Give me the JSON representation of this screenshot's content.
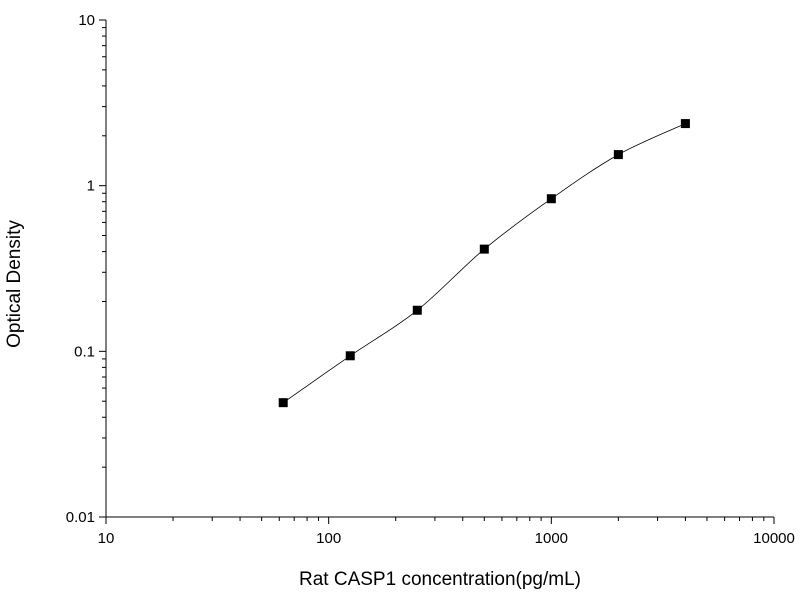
{
  "chart_data": {
    "type": "scatter",
    "title": "",
    "xlabel": "Rat CASP1 concentration(pg/mL)",
    "ylabel": "Optical Density",
    "xscale": "log",
    "yscale": "log",
    "xlim": [
      10,
      10000
    ],
    "ylim": [
      0.01,
      10
    ],
    "x_ticks": [
      10,
      100,
      1000,
      10000
    ],
    "x_tick_labels": [
      "10",
      "100",
      "1000",
      "10000"
    ],
    "y_ticks": [
      0.01,
      0.1,
      1,
      10
    ],
    "y_tick_labels": [
      "0.01",
      "0.1",
      "1",
      "10"
    ],
    "grid": false,
    "fit_curve": true,
    "marker": "square",
    "series": [
      {
        "x": [
          62.5,
          125,
          250,
          500,
          1000,
          2000,
          4000
        ],
        "y": [
          0.049,
          0.094,
          0.177,
          0.414,
          0.834,
          1.54,
          2.37
        ]
      }
    ]
  },
  "colors": {
    "marks": "#000000",
    "background": "#ffffff"
  }
}
